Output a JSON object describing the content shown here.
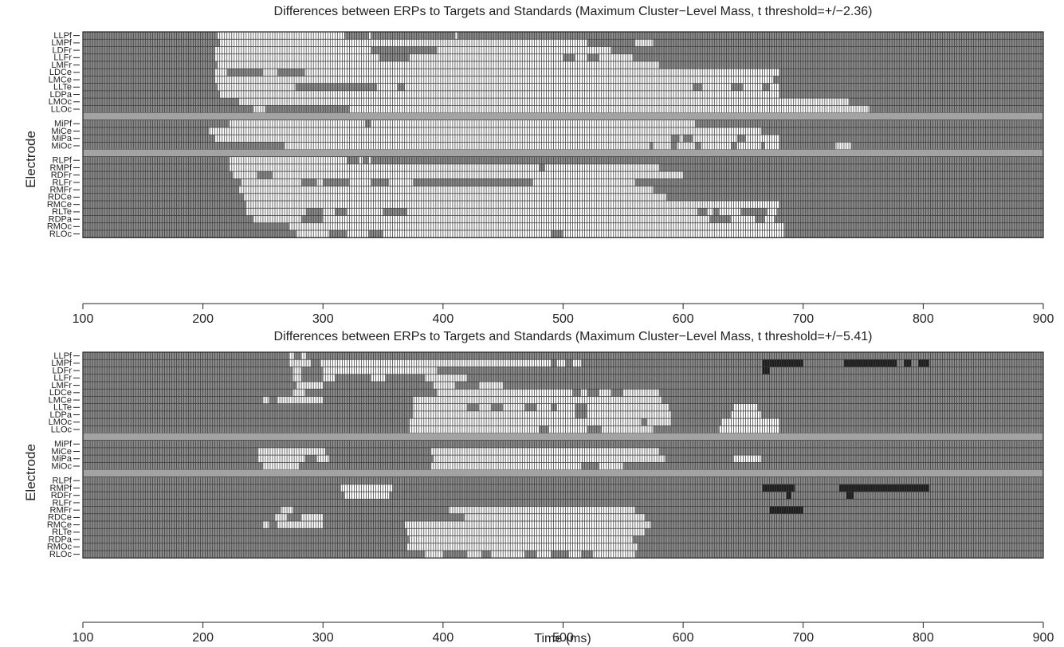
{
  "chart_data": [
    {
      "type": "heatmap",
      "title": "Differences between ERPs to Targets and Standards (Maximum Cluster−Level Mass, t threshold=+/−2.36)",
      "ylabel": "Electrode",
      "xlabel": "",
      "xlim": [
        100,
        900
      ],
      "xticks": [
        100,
        200,
        300,
        400,
        500,
        600,
        700,
        800,
        900
      ],
      "groups": [
        {
          "electrodes": [
            "LLPf",
            "LMPf",
            "LDFr",
            "LLFr",
            "LMFr",
            "LDCe",
            "LMCe",
            "LLTe",
            "LDPa",
            "LMOc",
            "LLOc"
          ]
        },
        {
          "electrodes": [
            "MiPf",
            "MiCe",
            "MiPa",
            "MiOc"
          ]
        },
        {
          "electrodes": [
            "RLPf",
            "RMPf",
            "RDFr",
            "RLFr",
            "RMFr",
            "RDCe",
            "RMCe",
            "RLTe",
            "RDPa",
            "RMOc",
            "RLOc"
          ]
        }
      ],
      "significant_positive": {
        "LLPf": [
          [
            212,
            318
          ],
          [
            338,
            340
          ],
          [
            410,
            412
          ]
        ],
        "LMPf": [
          [
            214,
            520
          ],
          [
            560,
            575
          ]
        ],
        "LDFr": [
          [
            210,
            340
          ],
          [
            395,
            540
          ]
        ],
        "LLFr": [
          [
            210,
            347
          ],
          [
            372,
            500
          ],
          [
            510,
            520
          ],
          [
            530,
            558
          ]
        ],
        "LMFr": [
          [
            212,
            580
          ]
        ],
        "LDCe": [
          [
            210,
            220
          ],
          [
            250,
            262
          ],
          [
            285,
            680
          ]
        ],
        "LMCe": [
          [
            210,
            675
          ]
        ],
        "LLTe": [
          [
            212,
            277
          ],
          [
            345,
            362
          ],
          [
            368,
            608
          ],
          [
            616,
            640
          ],
          [
            650,
            666
          ],
          [
            672,
            680
          ]
        ],
        "LDPa": [
          [
            214,
            680
          ]
        ],
        "LMOc": [
          [
            230,
            738
          ]
        ],
        "LLOc": [
          [
            242,
            252
          ],
          [
            322,
            755
          ]
        ],
        "MiPf": [
          [
            222,
            335
          ],
          [
            340,
            610
          ]
        ],
        "MiCe": [
          [
            205,
            665
          ]
        ],
        "MiPa": [
          [
            210,
            590
          ],
          [
            597,
            600
          ],
          [
            608,
            645
          ],
          [
            652,
            680
          ]
        ],
        "MiOc": [
          [
            268,
            572
          ],
          [
            575,
            590
          ],
          [
            595,
            610
          ],
          [
            615,
            640
          ],
          [
            645,
            665
          ],
          [
            668,
            680
          ],
          [
            727,
            740
          ]
        ],
        "RLPf": [
          [
            222,
            320
          ],
          [
            330,
            333
          ],
          [
            338,
            340
          ]
        ],
        "RMPf": [
          [
            222,
            480
          ],
          [
            485,
            580
          ]
        ],
        "RDFr": [
          [
            225,
            245
          ],
          [
            258,
            600
          ]
        ],
        "RLFr": [
          [
            232,
            282
          ],
          [
            295,
            300
          ],
          [
            322,
            340
          ],
          [
            355,
            375
          ],
          [
            475,
            560
          ]
        ],
        "RMFr": [
          [
            230,
            575
          ]
        ],
        "RDCe": [
          [
            234,
            586
          ]
        ],
        "RMCe": [
          [
            236,
            680
          ]
        ],
        "RLTe": [
          [
            236,
            286
          ],
          [
            300,
            310
          ],
          [
            320,
            350
          ],
          [
            370,
            612
          ],
          [
            620,
            625
          ],
          [
            630,
            648
          ],
          [
            670,
            678
          ]
        ],
        "RDPa": [
          [
            242,
            282
          ],
          [
            300,
            622
          ],
          [
            640,
            660
          ],
          [
            668,
            676
          ]
        ],
        "RMOc": [
          [
            272,
            684
          ]
        ],
        "RLOc": [
          [
            278,
            305
          ],
          [
            320,
            338
          ],
          [
            350,
            490
          ],
          [
            500,
            684
          ]
        ]
      },
      "significant_negative": {}
    },
    {
      "type": "heatmap",
      "title": "Differences between ERPs to Targets and Standards (Maximum Cluster−Level Mass, t threshold=+/−5.41)",
      "ylabel": "Electrode",
      "xlabel": "Time (ms)",
      "xlim": [
        100,
        900
      ],
      "xticks": [
        100,
        200,
        300,
        400,
        500,
        600,
        700,
        800,
        900
      ],
      "groups": [
        {
          "electrodes": [
            "LLPf",
            "LMPf",
            "LDFr",
            "LLFr",
            "LMFr",
            "LDCe",
            "LMCe",
            "LLTe",
            "LDPa",
            "LMOc",
            "LLOc"
          ]
        },
        {
          "electrodes": [
            "MiPf",
            "MiCe",
            "MiPa",
            "MiOc"
          ]
        },
        {
          "electrodes": [
            "RLPf",
            "RMPf",
            "RDFr",
            "RLFr",
            "RMFr",
            "RDCe",
            "RMCe",
            "RLTe",
            "RDPa",
            "RMOc",
            "RLOc"
          ]
        }
      ],
      "significant_positive": {
        "LLPf": [
          [
            272,
            276
          ],
          [
            282,
            286
          ]
        ],
        "LMPf": [
          [
            272,
            290
          ],
          [
            298,
            490
          ],
          [
            495,
            502
          ],
          [
            508,
            515
          ]
        ],
        "LDFr": [
          [
            275,
            282
          ],
          [
            300,
            395
          ]
        ],
        "LLFr": [
          [
            275,
            282
          ],
          [
            300,
            310
          ],
          [
            340,
            352
          ],
          [
            385,
            420
          ]
        ],
        "LMFr": [
          [
            278,
            300
          ],
          [
            392,
            410
          ],
          [
            430,
            450
          ]
        ],
        "LDCe": [
          [
            275,
            285
          ],
          [
            395,
            508
          ],
          [
            515,
            520
          ],
          [
            530,
            540
          ],
          [
            550,
            580
          ]
        ],
        "LMCe": [
          [
            250,
            255
          ],
          [
            262,
            300
          ],
          [
            375,
            582
          ]
        ],
        "LLTe": [
          [
            375,
            420
          ],
          [
            430,
            440
          ],
          [
            450,
            468
          ],
          [
            478,
            490
          ],
          [
            495,
            510
          ],
          [
            520,
            588
          ],
          [
            642,
            662
          ]
        ],
        "LDPa": [
          [
            375,
            510
          ],
          [
            520,
            590
          ],
          [
            640,
            665
          ]
        ],
        "LMOc": [
          [
            372,
            565
          ],
          [
            570,
            590
          ],
          [
            632,
            680
          ]
        ],
        "LLOc": [
          [
            372,
            480
          ],
          [
            488,
            520
          ],
          [
            532,
            575
          ],
          [
            630,
            680
          ]
        ],
        "MiPf": [],
        "MiCe": [
          [
            246,
            302
          ],
          [
            390,
            580
          ]
        ],
        "MiPa": [
          [
            246,
            285
          ],
          [
            295,
            305
          ],
          [
            392,
            585
          ],
          [
            642,
            665
          ]
        ],
        "MiOc": [
          [
            250,
            280
          ],
          [
            390,
            515
          ],
          [
            530,
            550
          ]
        ],
        "RLPf": [],
        "RMPf": [
          [
            315,
            358
          ]
        ],
        "RDFr": [
          [
            318,
            355
          ]
        ],
        "RLFr": [],
        "RMFr": [
          [
            265,
            275
          ],
          [
            405,
            560
          ]
        ],
        "RDCe": [
          [
            260,
            270
          ],
          [
            282,
            300
          ],
          [
            418,
            568
          ]
        ],
        "RMCe": [
          [
            250,
            255
          ],
          [
            262,
            300
          ],
          [
            368,
            573
          ]
        ],
        "RLTe": [
          [
            370,
            568
          ]
        ],
        "RDPa": [
          [
            372,
            558
          ]
        ],
        "RMOc": [
          [
            370,
            562
          ]
        ],
        "RLOc": [
          [
            385,
            400
          ],
          [
            420,
            432
          ],
          [
            440,
            468
          ],
          [
            478,
            490
          ],
          [
            505,
            515
          ],
          [
            525,
            560
          ]
        ]
      },
      "significant_negative": {
        "LMPf": [
          [
            666,
            700
          ],
          [
            734,
            778
          ],
          [
            784,
            790
          ],
          [
            796,
            805
          ]
        ],
        "LDFr": [
          [
            666,
            672
          ]
        ],
        "RMPf": [
          [
            666,
            693
          ],
          [
            730,
            805
          ]
        ],
        "RDFr": [
          [
            686,
            690
          ],
          [
            736,
            742
          ]
        ],
        "RMFr": [
          [
            672,
            700
          ]
        ]
      }
    }
  ]
}
